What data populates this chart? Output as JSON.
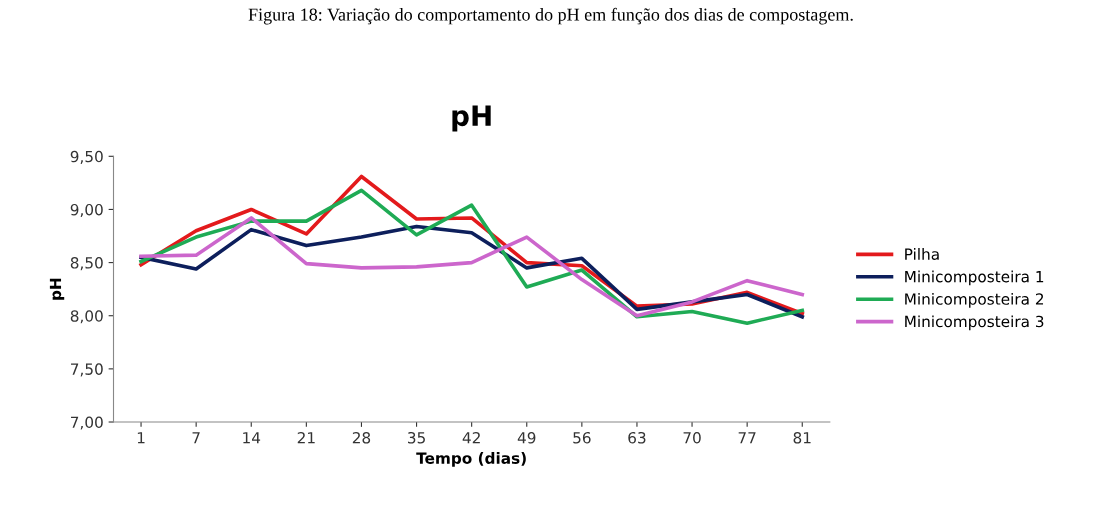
{
  "chart_data": {
    "type": "line",
    "title": "pH",
    "xlabel": "Tempo (dias)",
    "ylabel": "pH",
    "annotations": [
      "Figura 18: Variação do comportamento do pH em função dos dias de compostagem."
    ],
    "categories": [
      "1",
      "7",
      "14",
      "21",
      "28",
      "35",
      "42",
      "49",
      "56",
      "63",
      "70",
      "77",
      "81"
    ],
    "series": [
      {
        "name": "Pilha",
        "color": "#e31a1c",
        "values": [
          8.48,
          8.8,
          9.0,
          8.77,
          9.31,
          8.91,
          8.92,
          8.5,
          8.47,
          8.09,
          8.11,
          8.22,
          8.02
        ]
      },
      {
        "name": "Minicomposteira 1",
        "color": "#0d1f5c",
        "values": [
          8.55,
          8.44,
          8.81,
          8.66,
          8.74,
          8.84,
          8.78,
          8.45,
          8.54,
          8.06,
          8.13,
          8.2,
          7.99
        ]
      },
      {
        "name": "Minicomposteira 2",
        "color": "#1fab55",
        "values": [
          8.51,
          8.74,
          8.89,
          8.89,
          9.18,
          8.76,
          9.04,
          8.27,
          8.43,
          7.99,
          8.04,
          7.93,
          8.05
        ]
      },
      {
        "name": "Minicomposteira 3",
        "color": "#cc66cc",
        "values": [
          8.56,
          8.57,
          8.92,
          8.49,
          8.45,
          8.46,
          8.5,
          8.74,
          8.34,
          8.0,
          8.13,
          8.33,
          8.2
        ]
      }
    ],
    "ylim": [
      7.0,
      9.5
    ],
    "yticks": [
      {
        "value": 7.0,
        "label": "7,00"
      },
      {
        "value": 7.5,
        "label": "7,50"
      },
      {
        "value": 8.0,
        "label": "8,00"
      },
      {
        "value": 8.5,
        "label": "8,50"
      },
      {
        "value": 9.0,
        "label": "9,00"
      },
      {
        "value": 9.5,
        "label": "9,50"
      }
    ],
    "grid": false,
    "legend": "right",
    "marker": "none",
    "line_style": "solid"
  }
}
